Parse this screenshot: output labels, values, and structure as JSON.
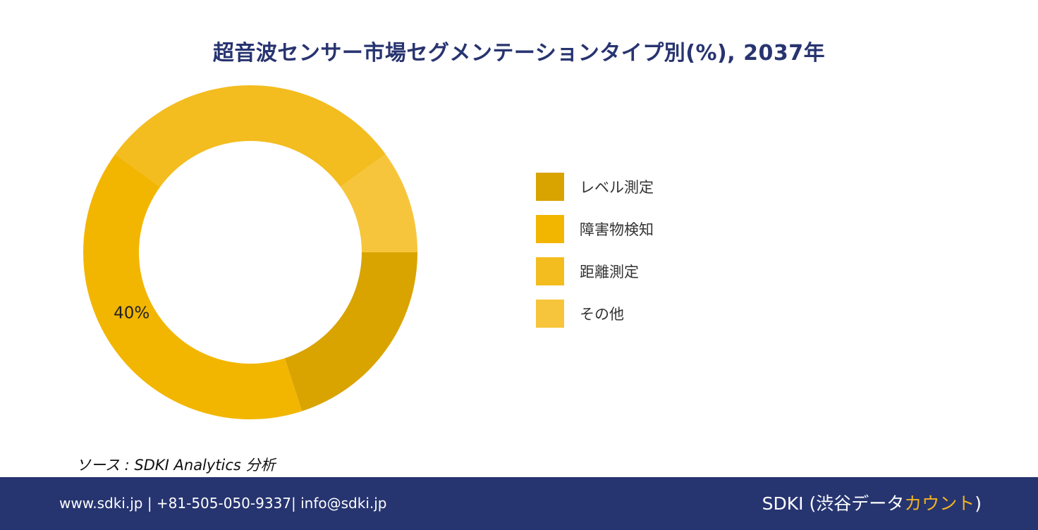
{
  "chart_data": {
    "type": "pie",
    "title": "超音波センサー市場セグメンテーションタイプ別(%), 2037年",
    "categories": [
      "レベル測定",
      "障害物検知",
      "距離測定",
      "その他"
    ],
    "values": [
      20,
      40,
      30,
      10
    ],
    "colors": [
      "#d9a300",
      "#f2b600",
      "#f3bc1f",
      "#f6c53b"
    ],
    "data_labels": [
      "",
      "40%",
      "",
      ""
    ],
    "legend_position": "right"
  },
  "source": "ソース : SDKI Analytics 分析",
  "footer": {
    "contact": "www.sdki.jp | +81-505-050-9337| info@sdki.jp",
    "brand_prefix": "SDKI (渋谷データ",
    "brand_accent": "カウント",
    "brand_suffix": ")"
  }
}
